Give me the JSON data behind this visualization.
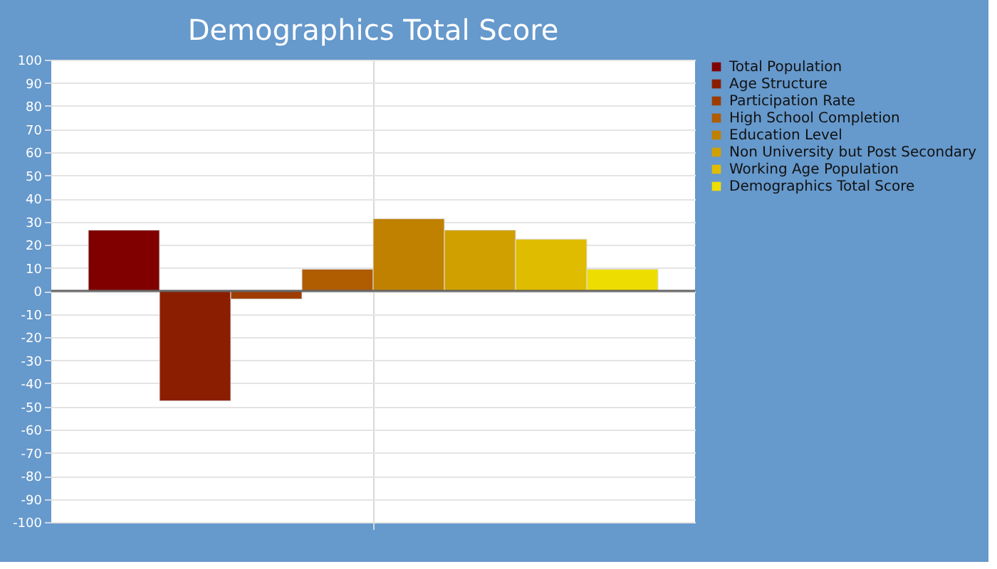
{
  "chart_data": {
    "type": "bar",
    "title": "Demographics Total Score",
    "categories": [
      null
    ],
    "series": [
      {
        "name": "Total Population",
        "color": "#800000",
        "values": [
          26.3
        ]
      },
      {
        "name": "Age Structure",
        "color": "#8b1e00",
        "values": [
          -47.6
        ]
      },
      {
        "name": "Participation Rate",
        "color": "#9e3c00",
        "values": [
          -3.5
        ]
      },
      {
        "name": "High School Completion",
        "color": "#b05c00",
        "values": [
          9.4
        ]
      },
      {
        "name": "Education Level",
        "color": "#c08000",
        "values": [
          31.2
        ]
      },
      {
        "name": "Non University but Post Secondary",
        "color": "#d0a000",
        "values": [
          26.3
        ]
      },
      {
        "name": "Working Age Population",
        "color": "#e0bc00",
        "values": [
          22.4
        ]
      },
      {
        "name": "Demographics Total Score",
        "color": "#eedd00",
        "values": [
          9.4
        ]
      }
    ],
    "ylim": [
      -100,
      100
    ],
    "yticks": [
      -100,
      -90,
      -80,
      -70,
      -60,
      -50,
      -40,
      -30,
      -20,
      -10,
      0,
      10,
      20,
      30,
      40,
      50,
      60,
      70,
      80,
      90,
      100
    ],
    "ref_lines": [
      {
        "axis": "y",
        "value": 0,
        "color": "#666666"
      }
    ],
    "grid": true,
    "legend": "top right",
    "tick_labels": "y"
  }
}
